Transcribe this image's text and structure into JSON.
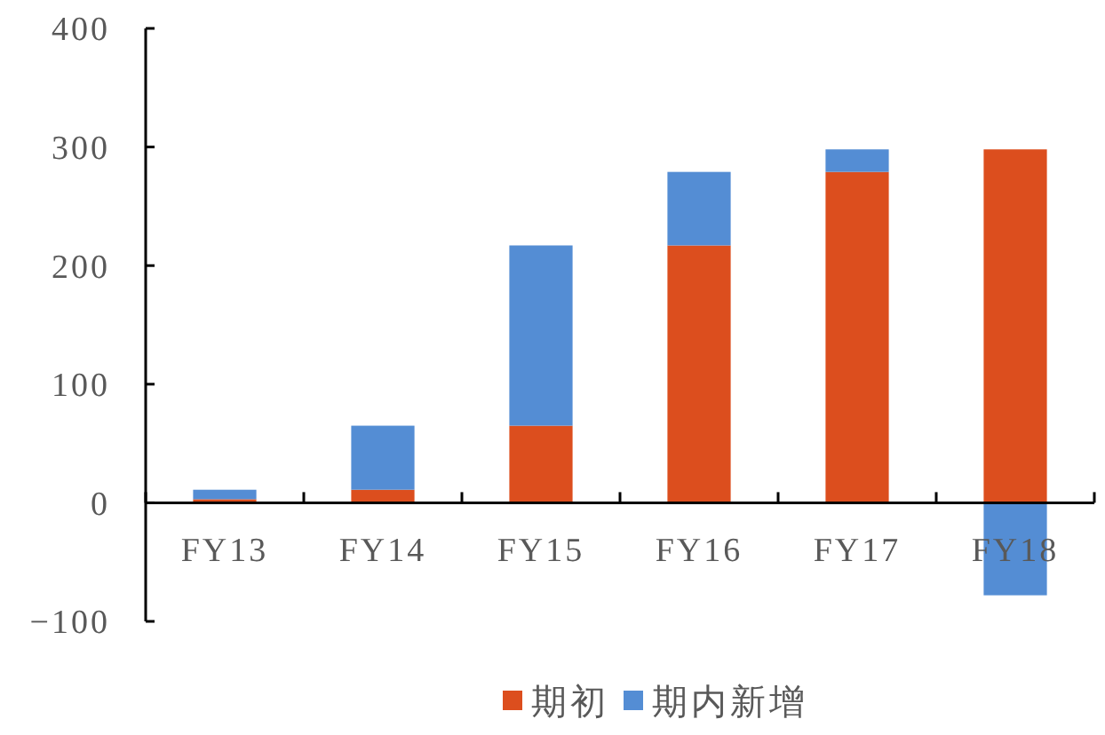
{
  "chart_data": {
    "type": "bar",
    "stacked": true,
    "categories": [
      "FY13",
      "FY14",
      "FY15",
      "FY16",
      "FY17",
      "FY18"
    ],
    "series": [
      {
        "name": "期初",
        "color": "#dc4e1e",
        "values": [
          3,
          11,
          65,
          217,
          279,
          298
        ]
      },
      {
        "name": "期内新增",
        "color": "#548dd4",
        "values": [
          8,
          54,
          152,
          62,
          19,
          -78
        ]
      }
    ],
    "ylim": [
      -100,
      400
    ],
    "yticks": [
      -100,
      0,
      100,
      200,
      300,
      400
    ],
    "grid": false,
    "legend": "bottom"
  }
}
